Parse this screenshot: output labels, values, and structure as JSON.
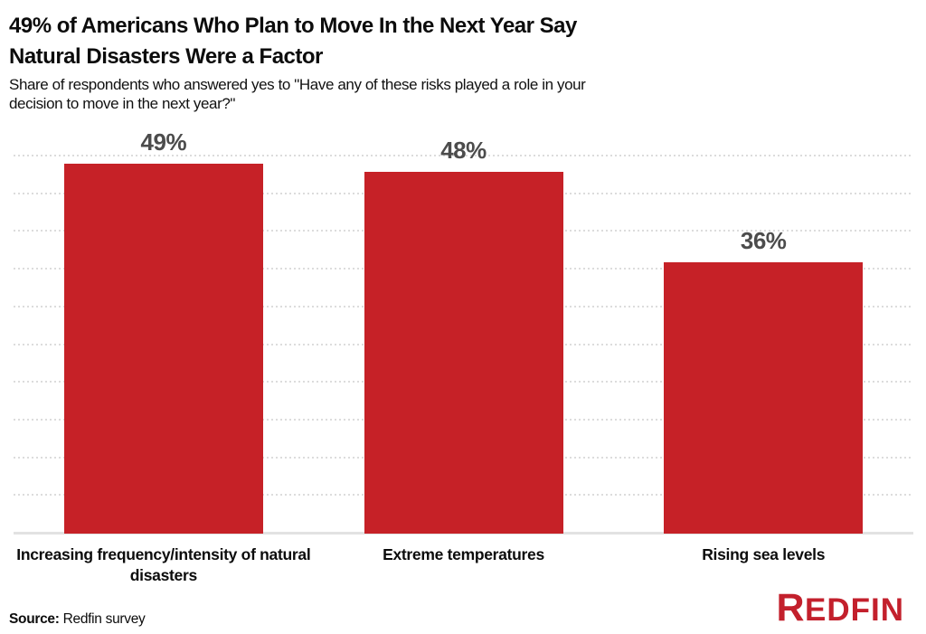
{
  "page": {
    "title_lines": [
      "49% of Americans Who Plan to Move In the Next Year Say",
      "Natural Disasters Were a Factor"
    ],
    "subtitle_lines": [
      "Share of respondents who answered yes to \"Have any of these risks played a role in your",
      "decision to move in the next year?\""
    ]
  },
  "chart_data": {
    "type": "bar",
    "title": "49% of Americans Who Plan to Move In the Next Year Say Natural Disasters Were a Factor",
    "subtitle": "Share of respondents who answered yes to \"Have any of these risks played a role in your decision to move in the next year?\"",
    "categories": [
      "Increasing frequency/intensity of natural disasters",
      "Extreme temperatures",
      "Rising sea levels"
    ],
    "values": [
      49,
      48,
      36
    ],
    "value_labels": [
      "49%",
      "48%",
      "36%"
    ],
    "xlabel": "",
    "ylabel": "",
    "ylim": [
      0,
      50
    ],
    "grid_step": 5,
    "grid": "horizontal-dotted",
    "legend": "none",
    "bar_color": "#c62127",
    "value_label_color": "#4c4c4c",
    "gridline_color": "#dcdcdc",
    "axis_line_color": "#e2e2e2"
  },
  "footer": {
    "source_label": "Source:",
    "source_text": "Redfin survey",
    "logo": {
      "first": "R",
      "rest": "EDFIN",
      "color": "#c3202c"
    }
  }
}
